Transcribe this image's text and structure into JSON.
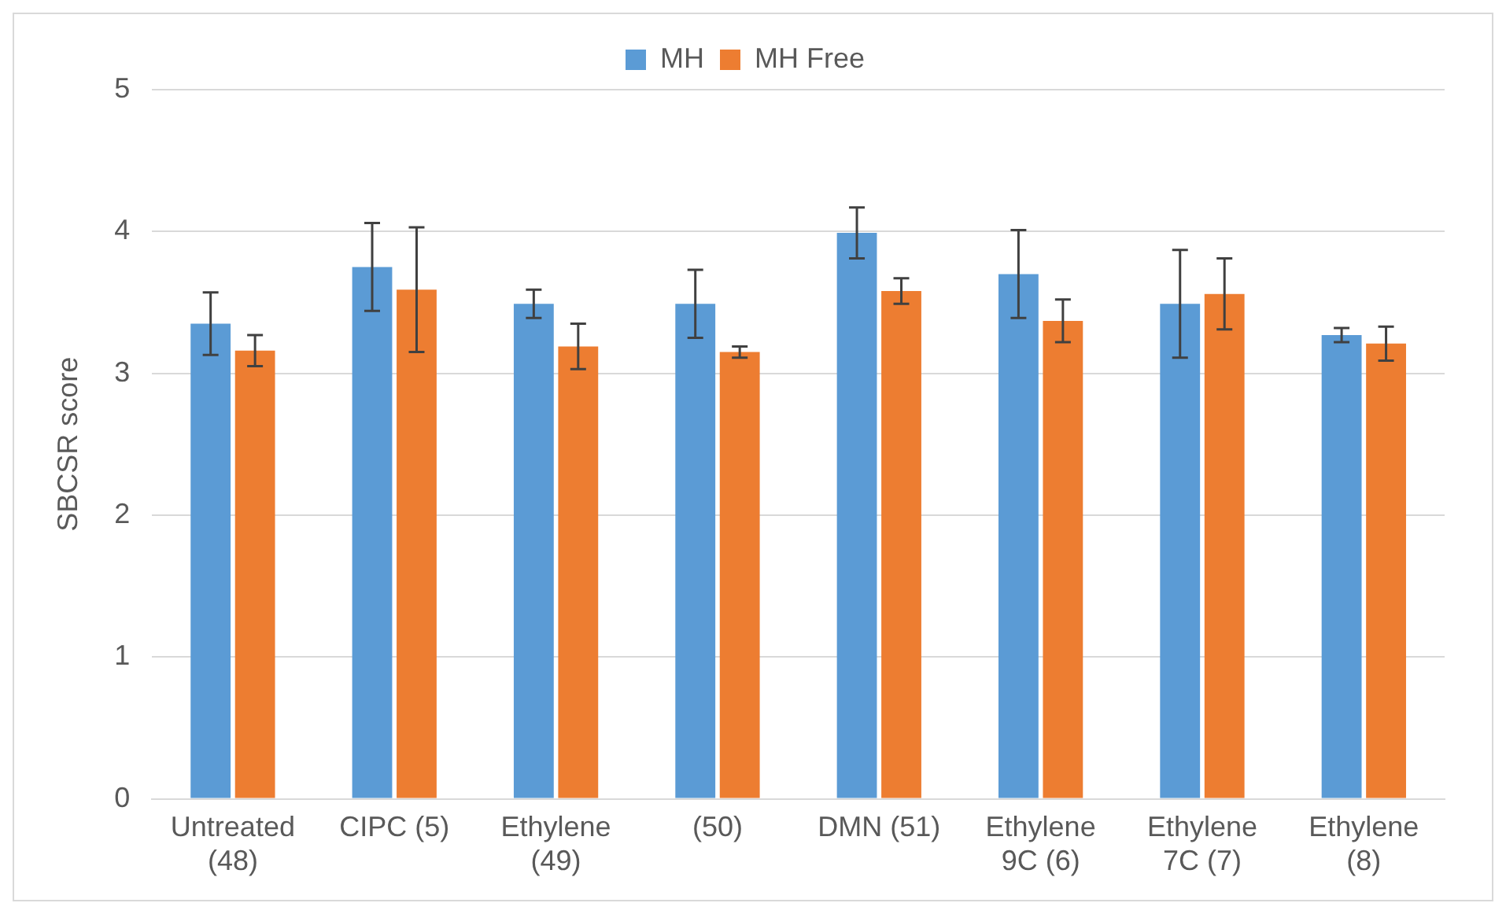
{
  "chart_data": {
    "type": "bar",
    "ylabel": "SBCSR score",
    "categories": [
      "Untreated (48)",
      "CIPC (5)",
      "Ethylene (49)",
      "(50)",
      "DMN (51)",
      "Ethylene 9C (6)",
      "Ethylene 7C (7)",
      "Ethylene (8)"
    ],
    "series": [
      {
        "name": "MH",
        "color": "#5b9bd5",
        "values": [
          3.35,
          3.75,
          3.49,
          3.49,
          3.99,
          3.7,
          3.49,
          3.27
        ],
        "errors": [
          0.22,
          0.31,
          0.1,
          0.24,
          0.18,
          0.31,
          0.38,
          0.05
        ]
      },
      {
        "name": "MH Free",
        "color": "#ed7d31",
        "values": [
          3.16,
          3.59,
          3.19,
          3.15,
          3.58,
          3.37,
          3.56,
          3.21
        ],
        "errors": [
          0.11,
          0.44,
          0.16,
          0.04,
          0.09,
          0.15,
          0.25,
          0.12
        ]
      }
    ],
    "ylim": [
      0,
      5
    ],
    "yticks": [
      0,
      1,
      2,
      3,
      4,
      5
    ],
    "grid": "y",
    "legend": "top"
  }
}
